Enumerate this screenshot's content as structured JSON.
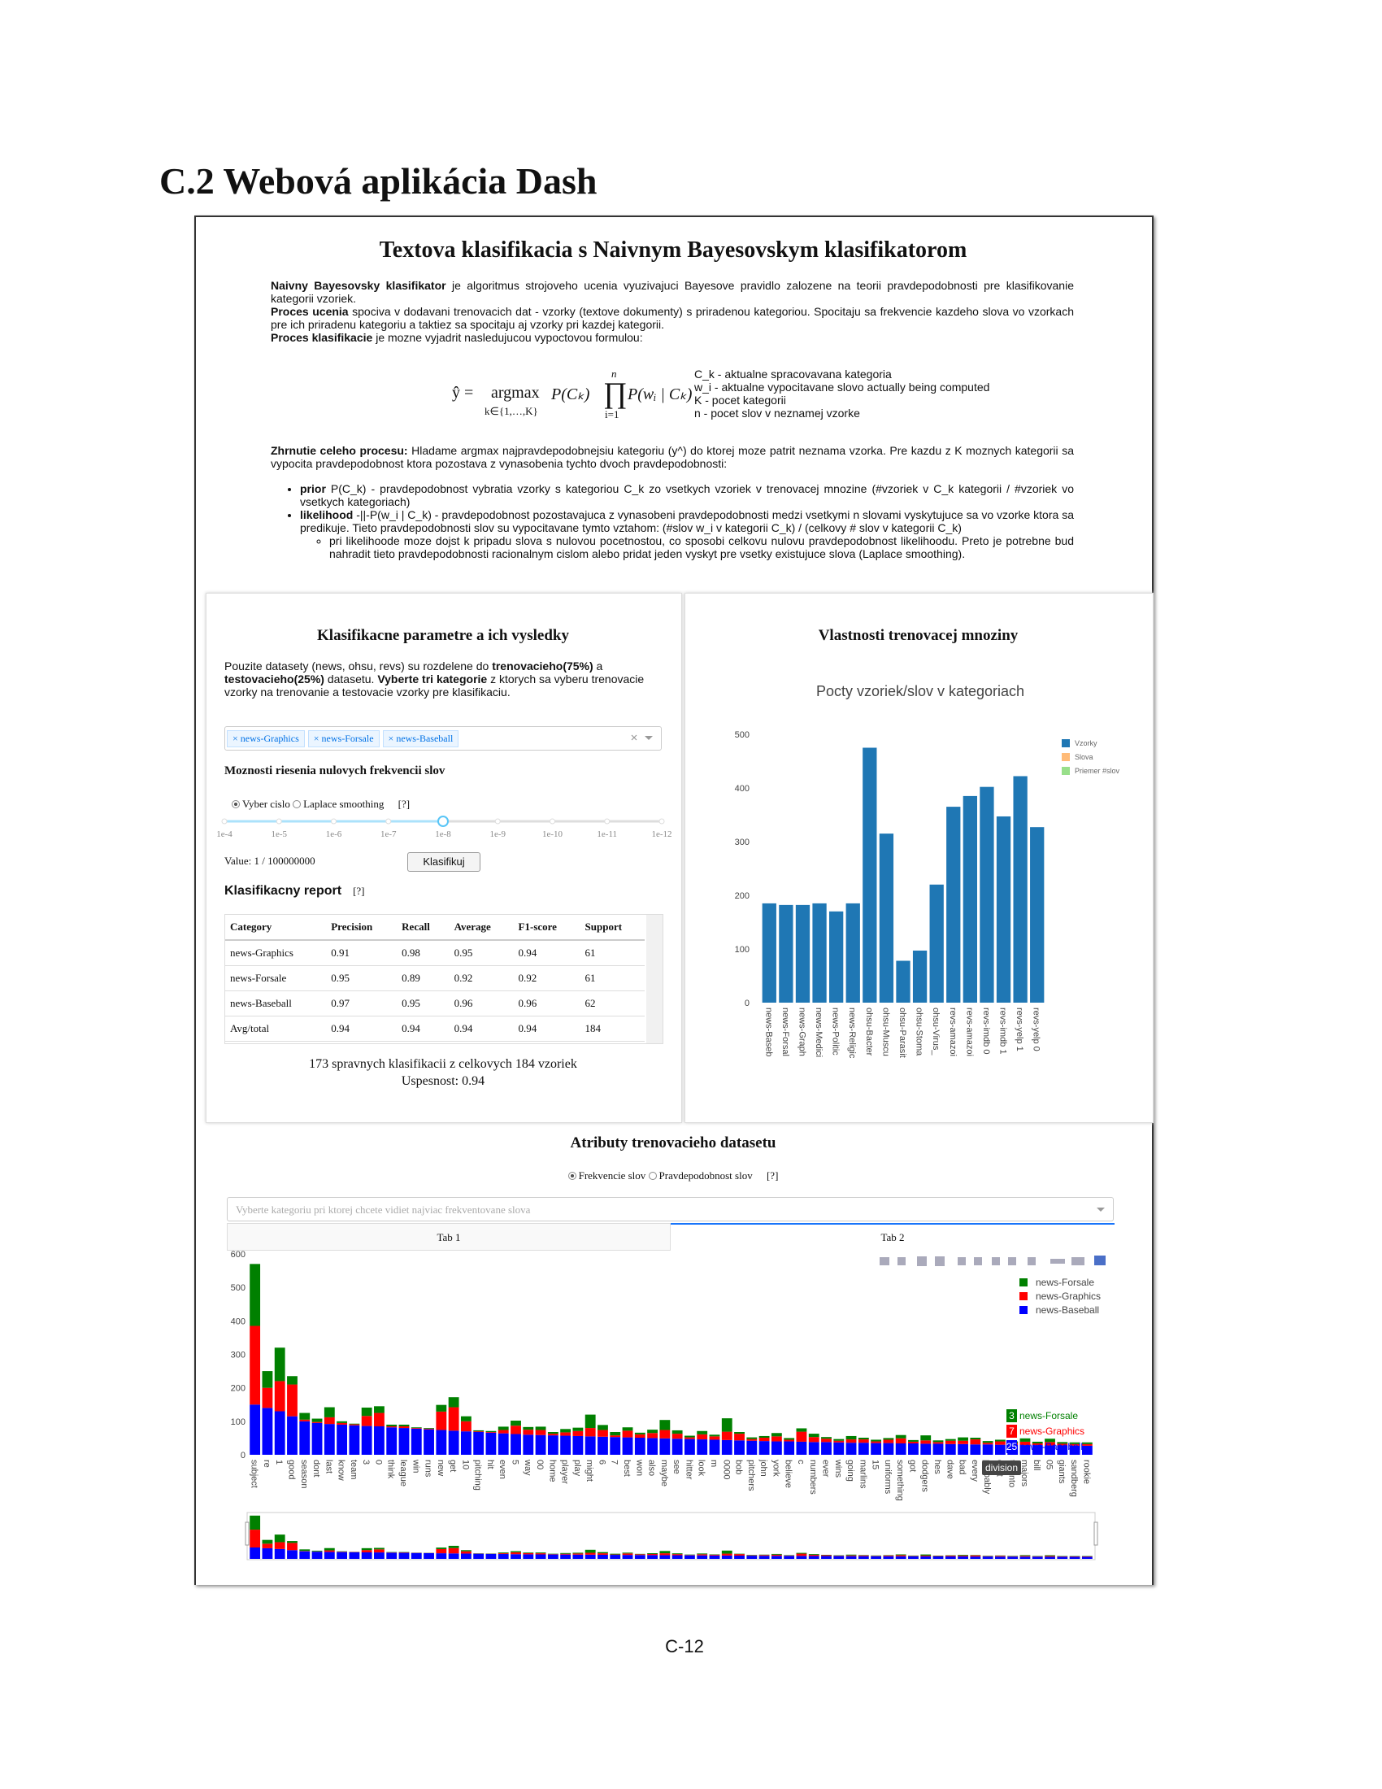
{
  "heading": "C.2 Webová aplikácia Dash",
  "app_title": "Textova klasifikacia s Naivnym Bayesovskym klasifikatorom",
  "intro": [
    [
      {
        "b": "Naivny Bayesovsky klasifikator"
      },
      {
        "t": " je algoritmus strojoveho ucenia vyuzivajuci Bayesove pravidlo zalozene na teorii pravdepodobnosti pre klasifikovanie kategorii vzoriek."
      }
    ],
    [
      {
        "b": "Proces ucenia"
      },
      {
        "t": " spociva v dodavani trenovacich dat - vzorky (textove dokumenty) s priradenou kategoriou. Spocitaju sa frekvencie kazdeho slova vo vzorkach pre ich priradenu kategoriu a taktiez sa spocitaju aj vzorky pri kazdej kategorii."
      }
    ],
    [
      {
        "b": "Proces klasifikacie"
      },
      {
        "t": " je mozne vyjadrit nasledujucou vypoctovou formulou:"
      }
    ]
  ],
  "formula": {
    "lhs": "ŷ =",
    "op": "argmax",
    "op_sub": "k∈{1,…,K}",
    "prior": "P(Cₖ)",
    "prod": "∏",
    "prod_top": "n",
    "prod_bottom": "i=1",
    "likelihood": "P(wᵢ | Cₖ)"
  },
  "formula_notes": [
    "C_k - aktualne spracovavana kategoria",
    "w_i - aktualne vypocitavane slovo actually being computed",
    "K - pocet kategorii",
    "n - pocet slov v neznamej vzorke"
  ],
  "summary": [
    {
      "b": "Zhrnutie celeho procesu:"
    },
    {
      "t": " Hladame argmax najpravdepodobnejsiu kategoriu (y^) do ktorej moze patrit neznama vzorka. Pre kazdu z K moznych kategorii sa vypocita pravdepodobnost ktora pozostava z vynasobenia tychto dvoch pravdepodobnosti:"
    }
  ],
  "bullets": [
    [
      {
        "b": "prior"
      },
      {
        "t": " P(C_k) - pravdepodobnost vybratia vzorky s kategoriou C_k zo vsetkych vzoriek v trenovacej mnozine (#vzoriek v C_k kategorii / #vzoriek vo vsetkych kategoriach)"
      }
    ],
    [
      {
        "b": "likelihood"
      },
      {
        "t": " -||-P(w_i | C_k) - pravdepodobnost pozostavajuca z vynasobeni pravdepodobnosti medzi vsetkymi n slovami vyskytujuce sa vo vzorke ktora sa predikuje. Tieto pravdepodobnosti slov su vypocitavane tymto vztahom: (#slov w_i v kategorii C_k) / (celkovy # slov v kategorii C_k)"
      }
    ]
  ],
  "sub_bullet": "pri likelihoode moze dojst k pripadu slova s nulovou pocetnostou, co sposobi celkovu nulovu pravdepodobnost likelihoodu. Preto je potrebne bud nahradit tieto pravdepodobnosti racionalnym cislom alebo pridat jeden vyskyt pre vsetky existujuce slova (Laplace smoothing).",
  "params": {
    "title": "Klasifikacne parametre a ich vysledky",
    "description": [
      {
        "t": "Pouzite datasety (news, ohsu, revs) su rozdelene do "
      },
      {
        "b": "trenovacieho(75%)"
      },
      {
        "t": " a "
      },
      {
        "b": "testovacieho(25%)"
      },
      {
        "t": " datasetu. "
      },
      {
        "b": "Vyberte tri kategorie"
      },
      {
        "t": " z ktorych sa vyberu trenovacie vzorky na trenovanie a testovacie vzorky pre klasifikaciu."
      }
    ],
    "selected": [
      "news-Graphics",
      "news-Forsale",
      "news-Baseball"
    ],
    "zero_title": "Moznosti riesenia nulovych frekvencii slov",
    "options": [
      "Vyber cislo",
      "Laplace smoothing"
    ],
    "help": "[?]",
    "slider_marks": [
      "1e-4",
      "1e-5",
      "1e-6",
      "1e-7",
      "1e-8",
      "1e-9",
      "1e-10",
      "1e-11",
      "1e-12"
    ],
    "value": "Value: 1 / 100000000",
    "button": "Klasifikuj",
    "report_title": "Klasifikacny report",
    "report_help": "[?]",
    "report": {
      "columns": [
        "Category",
        "Precision",
        "Recall",
        "Average",
        "F1-score",
        "Support"
      ],
      "rows": [
        [
          "news-Graphics",
          0.91,
          0.98,
          0.95,
          0.94,
          61
        ],
        [
          "news-Forsale",
          0.95,
          0.89,
          0.92,
          0.92,
          61
        ],
        [
          "news-Baseball",
          0.97,
          0.95,
          0.96,
          0.96,
          62
        ],
        [
          "Avg/total",
          0.94,
          0.94,
          0.94,
          0.94,
          184
        ]
      ]
    },
    "result": "173 spravnych klasifikacii z celkovych 184 vzoriek",
    "accuracy": "Uspesnost: 0.94"
  },
  "train": {
    "title": "Vlastnosti trenovacej mnoziny"
  },
  "attributes": {
    "title": "Atributy trenovacieho datasetu",
    "options": [
      "Frekvencie slov",
      "Pravdepodobnost slov"
    ],
    "help": "[?]",
    "placeholder": "Vyberte kategoriu pri ktorej chcete vidiet najviac frekventovane slova",
    "tabs": [
      "Tab 1",
      "Tab 2"
    ]
  },
  "chart_data": [
    {
      "type": "bar",
      "title": "Pocty vzoriek/slov v kategoriach",
      "categories": [
        "news-Baseb",
        "news-Forsal",
        "news-Graph",
        "news-Medici",
        "news-Politic",
        "news-Religic",
        "ohsu-Bacter",
        "ohsu-Muscu",
        "ohsu-Parasit",
        "ohsu-Stoma",
        "ohsu-Virus_",
        "revs-amazoi",
        "revs-amazoi",
        "revs-imdb 0",
        "revs-imdb 1",
        "revs-yelp 1",
        "revs-yelp 0"
      ],
      "series": [
        {
          "name": "Vzorky",
          "color": "#1f77b4",
          "values": [
            185,
            182,
            182,
            185,
            170,
            185,
            475,
            315,
            78,
            97,
            220,
            365,
            385,
            402,
            347,
            422,
            327
          ]
        },
        {
          "name": "Slova",
          "color": "#ffbb78",
          "values": [
            null,
            null,
            null,
            null,
            null,
            null,
            null,
            null,
            null,
            null,
            null,
            null,
            null,
            null,
            null,
            null,
            null
          ]
        },
        {
          "name": "Priemer #slov",
          "color": "#98df8a",
          "values": [
            null,
            null,
            null,
            null,
            null,
            null,
            null,
            null,
            null,
            null,
            null,
            null,
            null,
            null,
            null,
            null,
            null
          ]
        }
      ],
      "ylim": [
        0,
        500
      ],
      "yticks": [
        0,
        100,
        200,
        300,
        400,
        500
      ],
      "grid": false,
      "legend": "right"
    },
    {
      "type": "stacked_bar",
      "categories": [
        "subject",
        "re",
        "1",
        "good",
        "season",
        "dont",
        "last",
        "know",
        "team",
        "3",
        "0",
        "think",
        "league",
        "win",
        "runs",
        "new",
        "get",
        "10",
        "pitching",
        "hit",
        "even",
        "5",
        "way",
        "00",
        "home",
        "player",
        "play",
        "might",
        "6",
        "7",
        "best",
        "won",
        "also",
        "maybe",
        "see",
        "hitter",
        "look",
        "m",
        "0000",
        "bob",
        "pitchers",
        "john",
        "york",
        "believe",
        "c",
        "numbers",
        "ever",
        "wins",
        "going",
        "marlins",
        "15",
        "uniforms",
        "something",
        "got",
        "dodgers",
        "hes",
        "dave",
        "bad",
        "every",
        "probably",
        "east",
        "toronto",
        "majors",
        "bill",
        "05",
        "giants",
        "sandberg",
        "rookie"
      ],
      "series": [
        {
          "name": "news-Forsale",
          "color": "#008000",
          "values": [
            185,
            50,
            100,
            25,
            20,
            10,
            30,
            5,
            2,
            25,
            20,
            5,
            5,
            2,
            2,
            20,
            30,
            15,
            3,
            3,
            10,
            15,
            8,
            10,
            5,
            10,
            10,
            40,
            15,
            10,
            10,
            5,
            10,
            30,
            10,
            5,
            10,
            5,
            40,
            5,
            5,
            5,
            10,
            5,
            10,
            10,
            5,
            5,
            10,
            5,
            5,
            5,
            10,
            5,
            15,
            5,
            5,
            10,
            5,
            5,
            5,
            5,
            10,
            5,
            10,
            5,
            5,
            5
          ]
        },
        {
          "name": "news-Graphics",
          "color": "#ff0000",
          "values": [
            235,
            60,
            90,
            95,
            5,
            3,
            20,
            5,
            3,
            30,
            40,
            3,
            5,
            2,
            2,
            55,
            70,
            30,
            2,
            2,
            10,
            25,
            15,
            15,
            5,
            10,
            15,
            25,
            20,
            5,
            20,
            10,
            15,
            25,
            15,
            5,
            15,
            10,
            25,
            20,
            5,
            10,
            15,
            5,
            30,
            15,
            10,
            5,
            10,
            10,
            5,
            10,
            15,
            5,
            10,
            5,
            10,
            10,
            15,
            5,
            10,
            5,
            10,
            5,
            10,
            5,
            5,
            5
          ]
        },
        {
          "name": "news-Baseball",
          "color": "#0000ff",
          "values": [
            150,
            140,
            130,
            115,
            100,
            95,
            92,
            90,
            88,
            86,
            85,
            82,
            80,
            78,
            76,
            74,
            72,
            70,
            68,
            66,
            64,
            62,
            60,
            59,
            58,
            57,
            56,
            55,
            54,
            53,
            52,
            51,
            50,
            49,
            48,
            47,
            46,
            45,
            44,
            43,
            42,
            41,
            40,
            40,
            39,
            38,
            38,
            37,
            36,
            36,
            35,
            35,
            34,
            34,
            33,
            33,
            32,
            32,
            31,
            31,
            30,
            30,
            29,
            29,
            28,
            28,
            27,
            27
          ]
        }
      ],
      "ylim": [
        0,
        600
      ],
      "yticks": [
        0,
        100,
        200,
        300,
        400,
        500,
        600
      ],
      "grid": false,
      "legend": "top-right",
      "hover": {
        "category": "division",
        "values": [
          3,
          7,
          25
        ]
      }
    }
  ],
  "page_number": "C-12"
}
